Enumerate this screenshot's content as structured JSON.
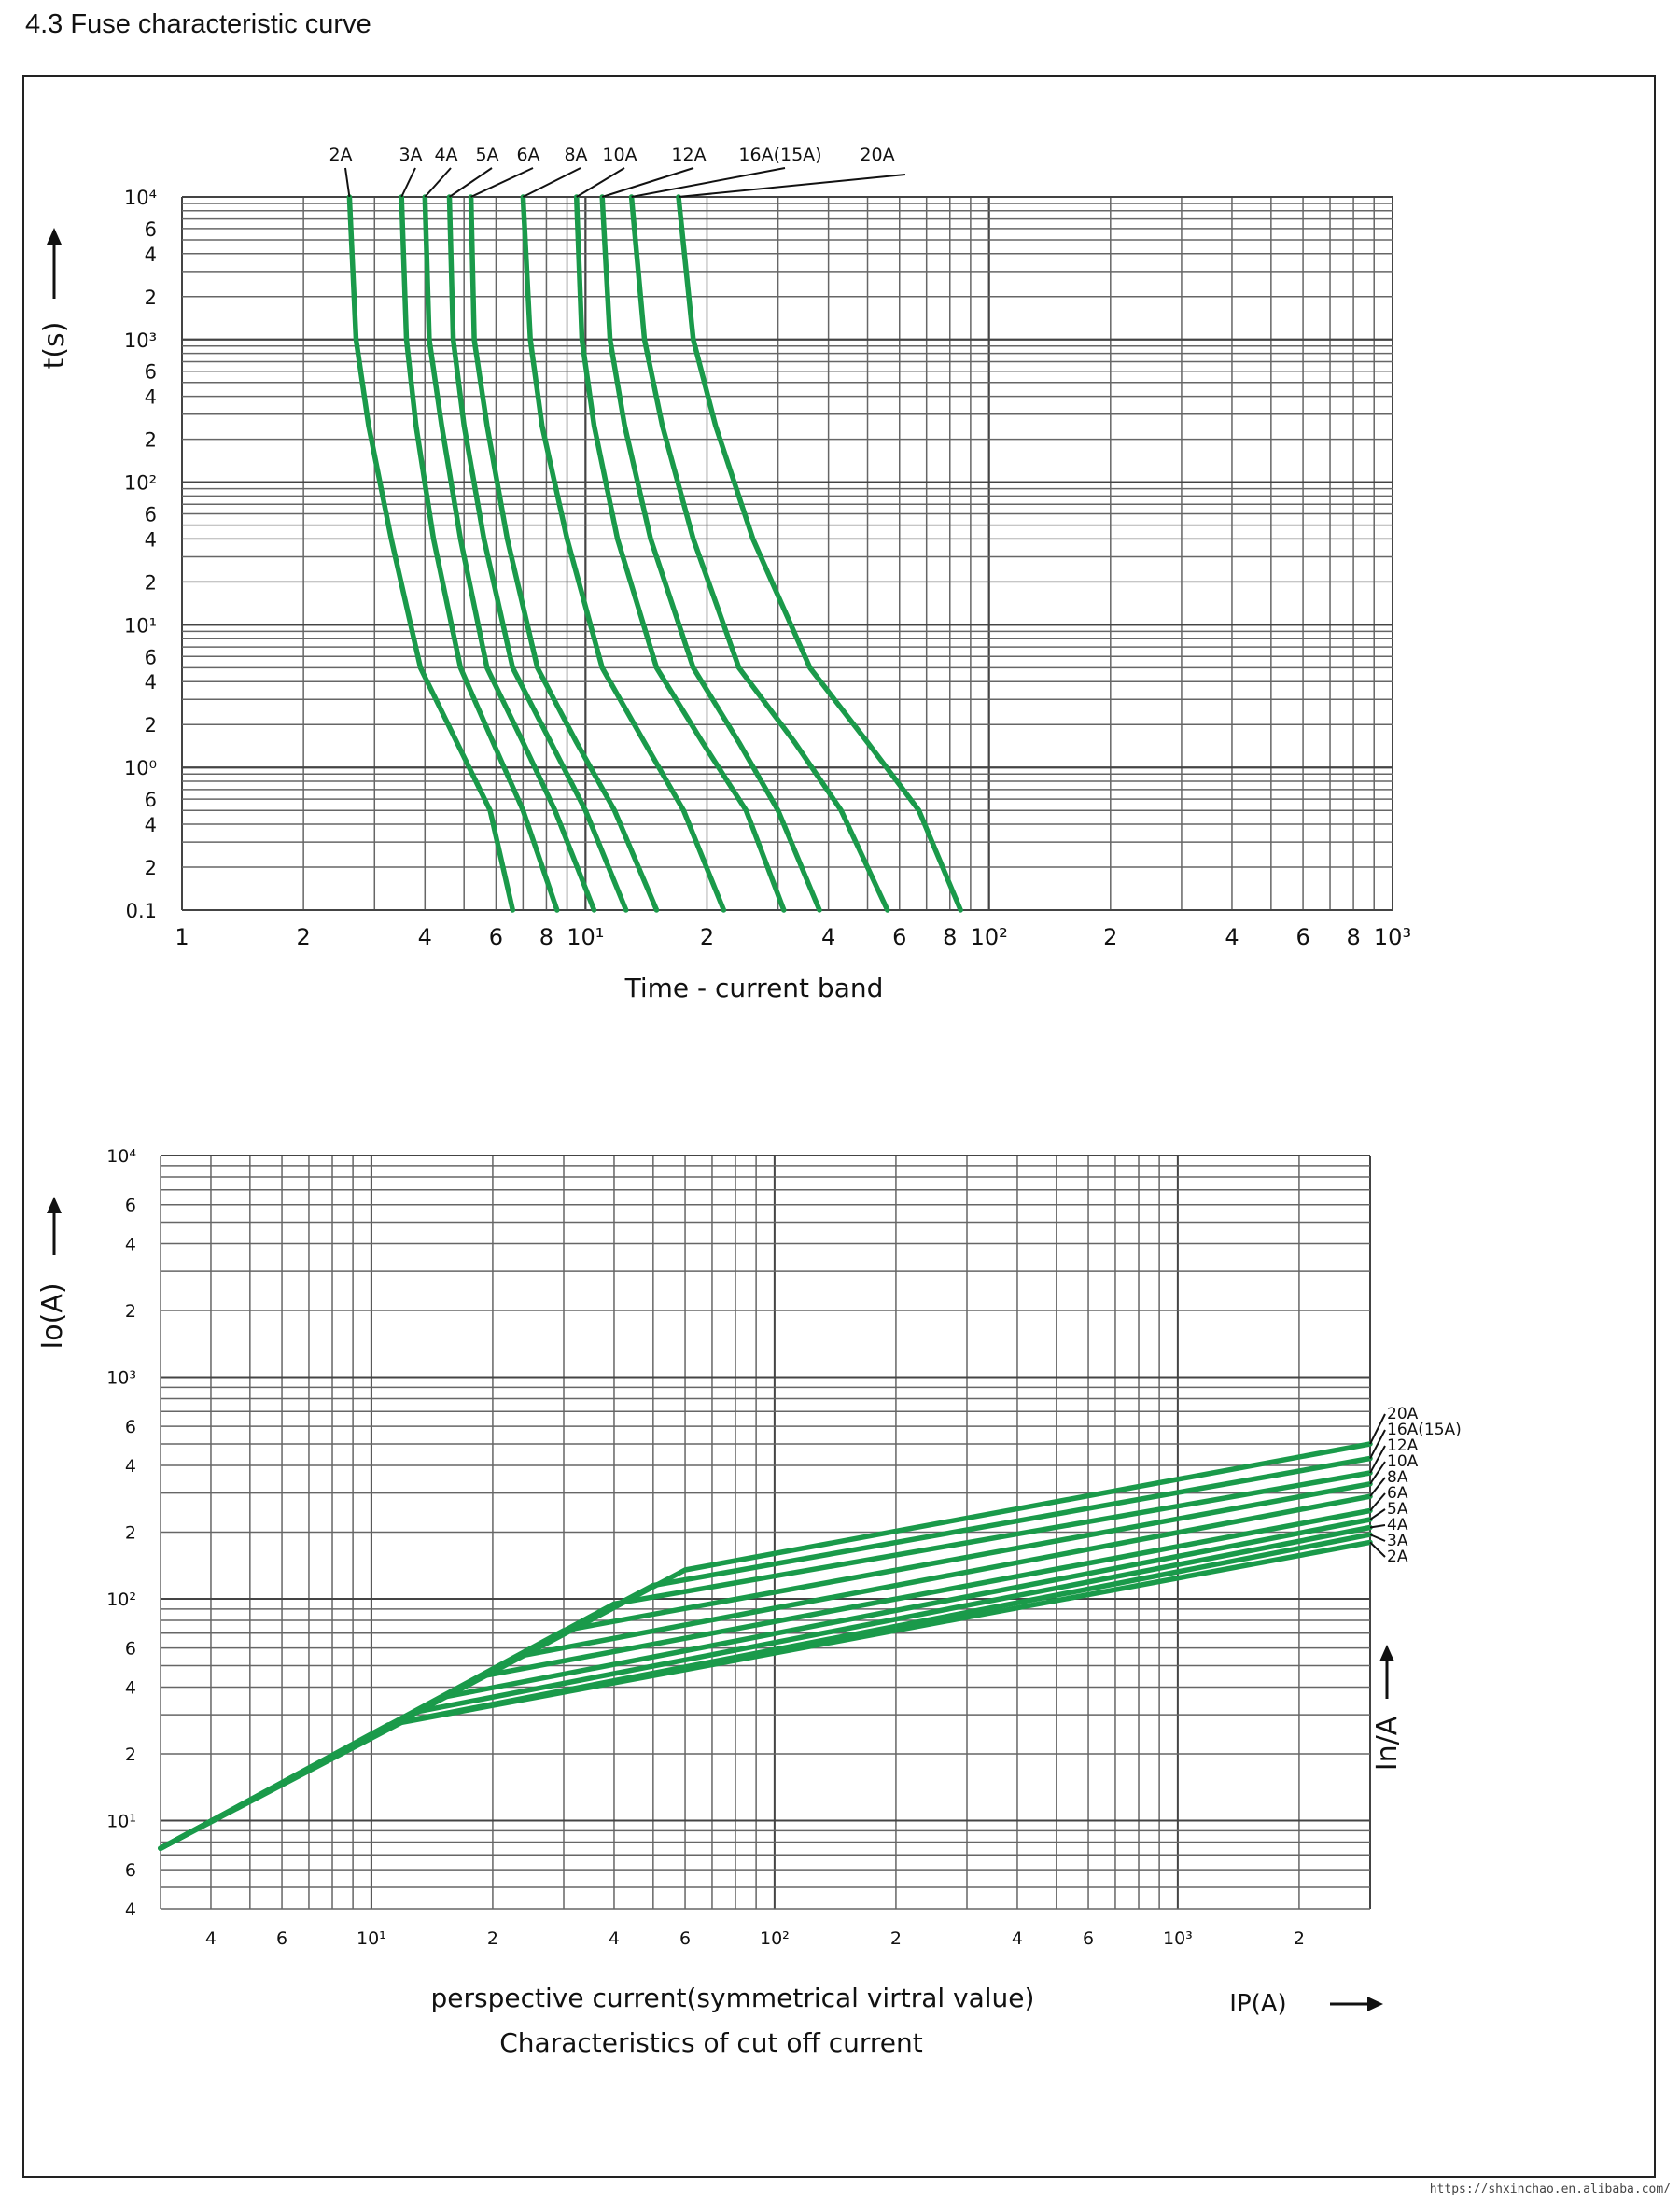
{
  "page_heading": "4.3 Fuse characteristic curve",
  "watermark": "https://shxinchao.en.alibaba.com/",
  "colors": {
    "curve": "#1a9a4a",
    "grid": "#666666",
    "text": "#111111"
  },
  "chart_data": [
    {
      "type": "line",
      "subtitle": "Time - current band",
      "ylabel": "t(s)",
      "xscale": "log",
      "yscale": "log",
      "xlim": [
        1,
        1000
      ],
      "ylim": [
        0.1,
        10000
      ],
      "x_tick_labels": [
        "1",
        "2",
        "4",
        "6",
        "8",
        "10¹",
        "2",
        "4",
        "6",
        "8",
        "10²",
        "2",
        "4",
        "6",
        "8",
        "10³"
      ],
      "y_tick_labels": [
        "10⁴",
        "6",
        "4",
        "2",
        "10³",
        "6",
        "4",
        "2",
        "10²",
        "6",
        "4",
        "2",
        "10¹",
        "6",
        "4",
        "2",
        "10⁰",
        "6",
        "4",
        "2",
        "0.1"
      ],
      "series_labels": [
        "2A",
        "3A",
        "4A",
        "5A",
        "6A",
        "8A",
        "10A",
        "12A",
        "16A(15A)",
        "20A"
      ],
      "series": [
        {
          "name": "2A",
          "points": [
            [
              2.6,
              10000
            ],
            [
              2.7,
              1000
            ],
            [
              2.9,
              250
            ],
            [
              3.3,
              40
            ],
            [
              3.9,
              5
            ],
            [
              4.8,
              1.5
            ],
            [
              5.8,
              0.5
            ],
            [
              6.6,
              0.1
            ]
          ]
        },
        {
          "name": "3A",
          "points": [
            [
              3.5,
              10000
            ],
            [
              3.6,
              1000
            ],
            [
              3.8,
              250
            ],
            [
              4.2,
              40
            ],
            [
              4.9,
              5
            ],
            [
              5.9,
              1.5
            ],
            [
              7.0,
              0.5
            ],
            [
              8.5,
              0.1
            ]
          ]
        },
        {
          "name": "4A",
          "points": [
            [
              4.0,
              10000
            ],
            [
              4.1,
              1000
            ],
            [
              4.4,
              250
            ],
            [
              4.9,
              40
            ],
            [
              5.7,
              5
            ],
            [
              7.0,
              1.5
            ],
            [
              8.4,
              0.5
            ],
            [
              10.5,
              0.1
            ]
          ]
        },
        {
          "name": "5A",
          "points": [
            [
              4.6,
              10000
            ],
            [
              4.7,
              1000
            ],
            [
              5.0,
              250
            ],
            [
              5.6,
              40
            ],
            [
              6.6,
              5
            ],
            [
              8.2,
              1.5
            ],
            [
              10.0,
              0.5
            ],
            [
              12.6,
              0.1
            ]
          ]
        },
        {
          "name": "6A",
          "points": [
            [
              5.2,
              10000
            ],
            [
              5.3,
              1000
            ],
            [
              5.7,
              250
            ],
            [
              6.4,
              40
            ],
            [
              7.6,
              5
            ],
            [
              9.5,
              1.5
            ],
            [
              11.8,
              0.5
            ],
            [
              15.0,
              0.1
            ]
          ]
        },
        {
          "name": "8A",
          "points": [
            [
              7.0,
              10000
            ],
            [
              7.3,
              1000
            ],
            [
              7.8,
              250
            ],
            [
              9.0,
              40
            ],
            [
              11.0,
              5
            ],
            [
              14.0,
              1.5
            ],
            [
              17.5,
              0.5
            ],
            [
              22.0,
              0.1
            ]
          ]
        },
        {
          "name": "10A",
          "points": [
            [
              9.5,
              10000
            ],
            [
              9.8,
              1000
            ],
            [
              10.5,
              250
            ],
            [
              12.0,
              40
            ],
            [
              15.0,
              5
            ],
            [
              19.5,
              1.5
            ],
            [
              25.0,
              0.5
            ],
            [
              31.0,
              0.1
            ]
          ]
        },
        {
          "name": "12A",
          "points": [
            [
              11.0,
              10000
            ],
            [
              11.5,
              1000
            ],
            [
              12.5,
              250
            ],
            [
              14.5,
              40
            ],
            [
              18.5,
              5
            ],
            [
              24.0,
              1.5
            ],
            [
              30.0,
              0.5
            ],
            [
              38.0,
              0.1
            ]
          ]
        },
        {
          "name": "16A(15A)",
          "points": [
            [
              13.0,
              10000
            ],
            [
              14.0,
              1000
            ],
            [
              15.5,
              250
            ],
            [
              18.5,
              40
            ],
            [
              24.0,
              5
            ],
            [
              33.0,
              1.5
            ],
            [
              43.0,
              0.5
            ],
            [
              56.0,
              0.1
            ]
          ]
        },
        {
          "name": "20A",
          "points": [
            [
              17.0,
              10000
            ],
            [
              18.5,
              1000
            ],
            [
              21.0,
              250
            ],
            [
              26.0,
              40
            ],
            [
              36.0,
              5
            ],
            [
              50.0,
              1.5
            ],
            [
              67.0,
              0.5
            ],
            [
              85.0,
              0.1
            ]
          ]
        }
      ]
    },
    {
      "type": "line",
      "title": "Characteristics of cut off current",
      "xlabel": "perspective  current(symmetrical virtral value)",
      "xlabel_unit": "IP(A)",
      "ylabel": "Io(A)",
      "right_label": "In/A",
      "xscale": "log",
      "yscale": "log",
      "xlim": [
        3,
        3000
      ],
      "ylim": [
        4,
        10000
      ],
      "x_tick_labels": [
        "4",
        "6",
        "10¹",
        "2",
        "4",
        "6",
        "10²",
        "2",
        "4",
        "6",
        "10³",
        "2"
      ],
      "y_tick_labels": [
        "10⁴",
        "6",
        "4",
        "2",
        "10³",
        "6",
        "4",
        "2",
        "10²",
        "6",
        "4",
        "2",
        "10¹",
        "6",
        "4"
      ],
      "series_labels": [
        "20A",
        "16A(15A)",
        "12A",
        "10A",
        "8A",
        "6A",
        "5A",
        "4A",
        "3A",
        "2A"
      ],
      "series": [
        {
          "name": "20A",
          "points": [
            [
              3,
              7.5
            ],
            [
              60,
              135
            ],
            [
              3000,
              500
            ]
          ]
        },
        {
          "name": "16A(15A)",
          "points": [
            [
              3,
              7.5
            ],
            [
              50,
              115
            ],
            [
              3000,
              430
            ]
          ]
        },
        {
          "name": "12A",
          "points": [
            [
              3,
              7.5
            ],
            [
              40,
              95
            ],
            [
              3000,
              370
            ]
          ]
        },
        {
          "name": "10A",
          "points": [
            [
              3,
              7.5
            ],
            [
              30,
              72
            ],
            [
              3000,
              330
            ]
          ]
        },
        {
          "name": "8A",
          "points": [
            [
              3,
              7.5
            ],
            [
              23,
              55
            ],
            [
              3000,
              290
            ]
          ]
        },
        {
          "name": "6A",
          "points": [
            [
              3,
              7.5
            ],
            [
              19,
              45
            ],
            [
              3000,
              250
            ]
          ]
        },
        {
          "name": "5A",
          "points": [
            [
              3,
              7.5
            ],
            [
              15,
              36
            ],
            [
              3000,
              228
            ]
          ]
        },
        {
          "name": "4A",
          "points": [
            [
              3,
              7.5
            ],
            [
              13,
              31
            ],
            [
              3000,
              210
            ]
          ]
        },
        {
          "name": "3A",
          "points": [
            [
              3,
              7.5
            ],
            [
              12,
              28
            ],
            [
              3000,
              195
            ]
          ]
        },
        {
          "name": "2A",
          "points": [
            [
              3,
              7.5
            ],
            [
              11,
              27
            ],
            [
              3000,
              180
            ]
          ]
        }
      ]
    }
  ]
}
